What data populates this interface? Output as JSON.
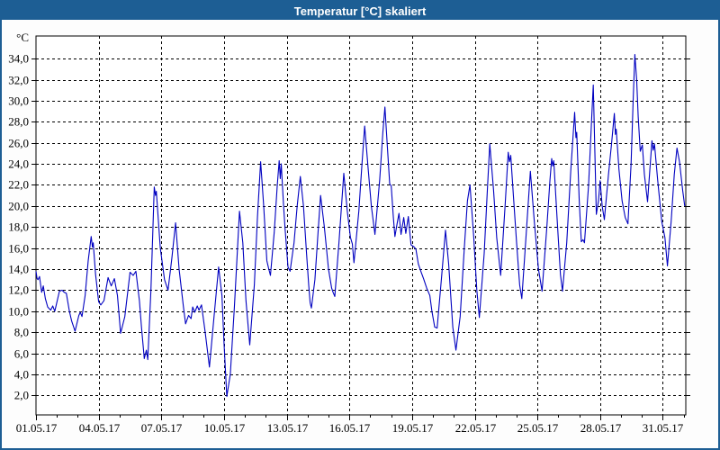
{
  "window": {
    "title": "Temperatur [°C] skaliert",
    "titlebar_color": "#1d5e94",
    "border_color": "#1d5e94",
    "background_color": "#fdfdfd"
  },
  "chart_data": {
    "type": "line",
    "title": "Temperatur [°C] skaliert",
    "ylabel": "°C",
    "xlabel": "",
    "grid": true,
    "legend": "none",
    "plot_bg": "#ffffff",
    "grid_color": "#000000",
    "axis_color": "#000000",
    "ylim": [
      0.15,
      36.15
    ],
    "xlim": [
      1,
      32.1
    ],
    "y_tick_values": [
      2,
      4,
      6,
      8,
      10,
      12,
      14,
      16,
      18,
      20,
      22,
      24,
      26,
      28,
      30,
      32,
      34
    ],
    "y_tick_labels": [
      "2,0",
      "4,0",
      "6,0",
      "8,0",
      "10,0",
      "12,0",
      "14,0",
      "16,0",
      "18,0",
      "20,0",
      "22,0",
      "24,0",
      "26,0",
      "28,0",
      "30,0",
      "32,0",
      "34,0"
    ],
    "x_tick_values": [
      1,
      4,
      7,
      10,
      13,
      16,
      19,
      22,
      25,
      28,
      31
    ],
    "x_tick_labels": [
      "01.05.17",
      "04.05.17",
      "07.05.17",
      "10.05.17",
      "13.05.17",
      "16.05.17",
      "19.05.17",
      "22.05.17",
      "25.05.17",
      "28.05.17",
      "31.05.17"
    ],
    "x_minor_tick_step_days": 1,
    "series": [
      {
        "name": "Temperatur",
        "color": "#0000c0",
        "points": [
          [
            1.0,
            13.8
          ],
          [
            1.05,
            13.1
          ],
          [
            1.1,
            13.0
          ],
          [
            1.17,
            13.3
          ],
          [
            1.27,
            11.8
          ],
          [
            1.35,
            12.4
          ],
          [
            1.45,
            11.2
          ],
          [
            1.56,
            10.4
          ],
          [
            1.7,
            10.1
          ],
          [
            1.8,
            10.5
          ],
          [
            1.9,
            10.0
          ],
          [
            2.05,
            11.3
          ],
          [
            2.12,
            11.9
          ],
          [
            2.25,
            12.0
          ],
          [
            2.35,
            11.8
          ],
          [
            2.45,
            11.7
          ],
          [
            2.6,
            10.0
          ],
          [
            2.7,
            9.1
          ],
          [
            2.87,
            8.1
          ],
          [
            3.05,
            9.6
          ],
          [
            3.12,
            9.9
          ],
          [
            3.2,
            9.5
          ],
          [
            3.35,
            11.5
          ],
          [
            3.5,
            14.8
          ],
          [
            3.64,
            17.1
          ],
          [
            3.7,
            16.1
          ],
          [
            3.74,
            16.5
          ],
          [
            3.85,
            13.5
          ],
          [
            4.0,
            10.9
          ],
          [
            4.1,
            10.6
          ],
          [
            4.25,
            11.0
          ],
          [
            4.45,
            13.2
          ],
          [
            4.6,
            12.4
          ],
          [
            4.75,
            13.1
          ],
          [
            4.9,
            11.5
          ],
          [
            5.05,
            7.9
          ],
          [
            5.25,
            9.5
          ],
          [
            5.5,
            13.7
          ],
          [
            5.65,
            13.4
          ],
          [
            5.78,
            13.8
          ],
          [
            5.95,
            11.0
          ],
          [
            6.05,
            8.5
          ],
          [
            6.18,
            5.5
          ],
          [
            6.28,
            6.3
          ],
          [
            6.35,
            5.4
          ],
          [
            6.5,
            12.0
          ],
          [
            6.66,
            21.8
          ],
          [
            6.72,
            21.0
          ],
          [
            6.76,
            21.4
          ],
          [
            6.95,
            16.0
          ],
          [
            7.15,
            13.0
          ],
          [
            7.32,
            12.0
          ],
          [
            7.5,
            15.0
          ],
          [
            7.68,
            18.4
          ],
          [
            7.85,
            14.0
          ],
          [
            8.05,
            10.5
          ],
          [
            8.16,
            8.8
          ],
          [
            8.3,
            9.6
          ],
          [
            8.42,
            9.3
          ],
          [
            8.5,
            10.4
          ],
          [
            8.6,
            9.9
          ],
          [
            8.72,
            10.5
          ],
          [
            8.8,
            10.1
          ],
          [
            8.92,
            10.6
          ],
          [
            9.1,
            8.0
          ],
          [
            9.3,
            4.7
          ],
          [
            9.5,
            9.0
          ],
          [
            9.74,
            14.2
          ],
          [
            9.9,
            11.5
          ],
          [
            10.0,
            7.0
          ],
          [
            10.13,
            1.9
          ],
          [
            10.3,
            4.0
          ],
          [
            10.5,
            10.5
          ],
          [
            10.74,
            19.5
          ],
          [
            10.9,
            16.5
          ],
          [
            11.05,
            11.0
          ],
          [
            11.23,
            6.8
          ],
          [
            11.45,
            12.5
          ],
          [
            11.6,
            19.0
          ],
          [
            11.75,
            24.2
          ],
          [
            11.9,
            20.0
          ],
          [
            12.05,
            14.8
          ],
          [
            12.13,
            14.1
          ],
          [
            12.22,
            13.4
          ],
          [
            12.4,
            17.5
          ],
          [
            12.55,
            22.0
          ],
          [
            12.64,
            24.3
          ],
          [
            12.69,
            22.6
          ],
          [
            12.74,
            24.0
          ],
          [
            12.85,
            20.0
          ],
          [
            12.92,
            17.9
          ],
          [
            13.06,
            14.2
          ],
          [
            13.16,
            13.8
          ],
          [
            13.35,
            16.5
          ],
          [
            13.5,
            20.0
          ],
          [
            13.65,
            22.8
          ],
          [
            13.8,
            20.0
          ],
          [
            13.95,
            15.5
          ],
          [
            14.05,
            12.5
          ],
          [
            14.12,
            10.8
          ],
          [
            14.18,
            10.3
          ],
          [
            14.35,
            13.0
          ],
          [
            14.5,
            17.5
          ],
          [
            14.62,
            21.0
          ],
          [
            14.8,
            18.0
          ],
          [
            15.0,
            14.0
          ],
          [
            15.15,
            12.2
          ],
          [
            15.22,
            11.8
          ],
          [
            15.3,
            11.4
          ],
          [
            15.5,
            16.5
          ],
          [
            15.73,
            23.1
          ],
          [
            15.9,
            19.5
          ],
          [
            16.05,
            17.0
          ],
          [
            16.14,
            16.4
          ],
          [
            16.22,
            14.6
          ],
          [
            16.45,
            19.5
          ],
          [
            16.6,
            24.0
          ],
          [
            16.73,
            27.6
          ],
          [
            16.9,
            23.5
          ],
          [
            17.05,
            20.0
          ],
          [
            17.22,
            17.3
          ],
          [
            17.45,
            22.5
          ],
          [
            17.6,
            27.0
          ],
          [
            17.7,
            29.4
          ],
          [
            17.82,
            25.5
          ],
          [
            17.93,
            22.1
          ],
          [
            18.0,
            21.9
          ],
          [
            18.1,
            19.0
          ],
          [
            18.18,
            17.1
          ],
          [
            18.3,
            18.5
          ],
          [
            18.37,
            19.3
          ],
          [
            18.47,
            17.3
          ],
          [
            18.6,
            18.9
          ],
          [
            18.7,
            17.4
          ],
          [
            18.82,
            19.0
          ],
          [
            18.95,
            16.3
          ],
          [
            19.1,
            16.1
          ],
          [
            19.18,
            15.9
          ],
          [
            19.3,
            14.5
          ],
          [
            19.42,
            13.8
          ],
          [
            19.55,
            13.1
          ],
          [
            19.7,
            12.2
          ],
          [
            19.85,
            11.5
          ],
          [
            19.95,
            10.0
          ],
          [
            20.08,
            8.5
          ],
          [
            20.2,
            8.4
          ],
          [
            20.4,
            13.0
          ],
          [
            20.6,
            17.7
          ],
          [
            20.75,
            14.5
          ],
          [
            20.95,
            8.5
          ],
          [
            21.1,
            6.3
          ],
          [
            21.3,
            9.5
          ],
          [
            21.5,
            16.0
          ],
          [
            21.65,
            20.5
          ],
          [
            21.77,
            22.0
          ],
          [
            21.95,
            17.0
          ],
          [
            22.1,
            12.0
          ],
          [
            22.22,
            9.4
          ],
          [
            22.45,
            15.5
          ],
          [
            22.6,
            21.5
          ],
          [
            22.72,
            25.9
          ],
          [
            22.9,
            21.5
          ],
          [
            23.05,
            17.0
          ],
          [
            23.24,
            13.4
          ],
          [
            23.45,
            20.0
          ],
          [
            23.6,
            25.1
          ],
          [
            23.66,
            24.2
          ],
          [
            23.72,
            24.8
          ],
          [
            23.85,
            20.9
          ],
          [
            24.0,
            16.5
          ],
          [
            24.15,
            12.5
          ],
          [
            24.25,
            11.2
          ],
          [
            24.45,
            17.0
          ],
          [
            24.66,
            23.3
          ],
          [
            24.85,
            18.5
          ],
          [
            25.05,
            14.0
          ],
          [
            25.22,
            11.9
          ],
          [
            25.45,
            18.0
          ],
          [
            25.6,
            22.5
          ],
          [
            25.68,
            24.5
          ],
          [
            25.73,
            23.8
          ],
          [
            25.78,
            24.3
          ],
          [
            25.95,
            18.5
          ],
          [
            26.1,
            13.5
          ],
          [
            26.2,
            11.9
          ],
          [
            26.4,
            16.5
          ],
          [
            26.6,
            23.5
          ],
          [
            26.78,
            28.9
          ],
          [
            26.84,
            26.5
          ],
          [
            26.88,
            27.0
          ],
          [
            27.0,
            20.5
          ],
          [
            27.1,
            16.6
          ],
          [
            27.18,
            16.8
          ],
          [
            27.25,
            16.5
          ],
          [
            27.45,
            22.0
          ],
          [
            27.6,
            28.5
          ],
          [
            27.67,
            31.5
          ],
          [
            27.75,
            25.0
          ],
          [
            27.82,
            19.2
          ],
          [
            27.92,
            20.5
          ],
          [
            28.0,
            22.4
          ],
          [
            28.1,
            20.0
          ],
          [
            28.2,
            18.7
          ],
          [
            28.4,
            23.0
          ],
          [
            28.55,
            26.0
          ],
          [
            28.68,
            28.8
          ],
          [
            28.73,
            26.8
          ],
          [
            28.77,
            27.3
          ],
          [
            28.9,
            23.5
          ],
          [
            29.05,
            20.5
          ],
          [
            29.2,
            18.9
          ],
          [
            29.33,
            18.3
          ],
          [
            29.48,
            24.0
          ],
          [
            29.58,
            30.0
          ],
          [
            29.66,
            34.4
          ],
          [
            29.75,
            32.0
          ],
          [
            29.82,
            28.5
          ],
          [
            29.92,
            25.2
          ],
          [
            30.02,
            25.8
          ],
          [
            30.12,
            23.0
          ],
          [
            30.27,
            20.4
          ],
          [
            30.38,
            23.5
          ],
          [
            30.48,
            26.2
          ],
          [
            30.54,
            25.3
          ],
          [
            30.6,
            25.9
          ],
          [
            30.75,
            22.5
          ],
          [
            30.95,
            18.5
          ],
          [
            31.1,
            17.0
          ],
          [
            31.22,
            14.3
          ],
          [
            31.4,
            18.5
          ],
          [
            31.55,
            23.0
          ],
          [
            31.68,
            25.5
          ],
          [
            31.8,
            24.2
          ],
          [
            31.95,
            21.5
          ],
          [
            32.05,
            20.0
          ]
        ]
      }
    ]
  }
}
